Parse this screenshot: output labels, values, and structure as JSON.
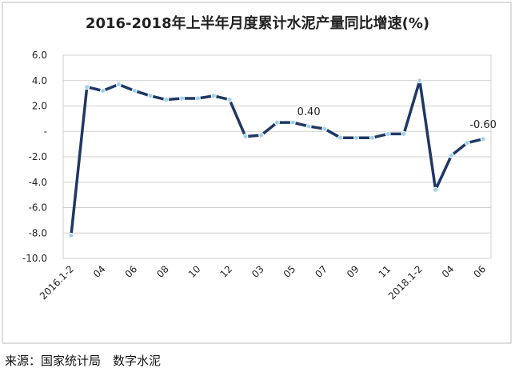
{
  "chart_data": {
    "type": "line",
    "title": "2016-2018年上半年月度累计水泥产量同比增速(%)",
    "categories": [
      "2016.1-2",
      null,
      "04",
      null,
      "06",
      null,
      "08",
      null,
      "10",
      null,
      "12",
      null,
      "03",
      null,
      "05",
      null,
      "07",
      null,
      "09",
      null,
      "11",
      null,
      "2018.1-2",
      null,
      "04",
      null,
      "06"
    ],
    "values": [
      -8.2,
      3.5,
      3.2,
      3.7,
      3.2,
      2.8,
      2.5,
      2.6,
      2.6,
      2.8,
      2.5,
      -0.4,
      -0.3,
      0.7,
      0.7,
      0.4,
      0.2,
      -0.5,
      -0.5,
      -0.5,
      -0.2,
      -0.2,
      4.0,
      -4.6,
      -1.9,
      -0.9,
      -0.6
    ],
    "value_labels": [
      null,
      null,
      null,
      null,
      null,
      null,
      null,
      null,
      null,
      null,
      null,
      null,
      null,
      null,
      null,
      "0.40",
      null,
      null,
      null,
      null,
      null,
      null,
      null,
      null,
      null,
      null,
      "-0.60"
    ],
    "color": "#1f3864",
    "marker_color": "#9dd3ea",
    "ylim": [
      -10,
      6
    ],
    "yticks": [
      {
        "value": 6,
        "label": "6.0"
      },
      {
        "value": 4,
        "label": "4.0"
      },
      {
        "value": 2,
        "label": "2.0"
      },
      {
        "value": 0,
        "label": "-"
      },
      {
        "value": -2,
        "label": "-2.0"
      },
      {
        "value": -4,
        "label": "-4.0"
      },
      {
        "value": -6,
        "label": "-6.0"
      },
      {
        "value": -8,
        "label": "-8.0"
      },
      {
        "value": -10,
        "label": "-10.0"
      }
    ],
    "grid": true
  },
  "source": "来源：国家统计局　数字水泥"
}
